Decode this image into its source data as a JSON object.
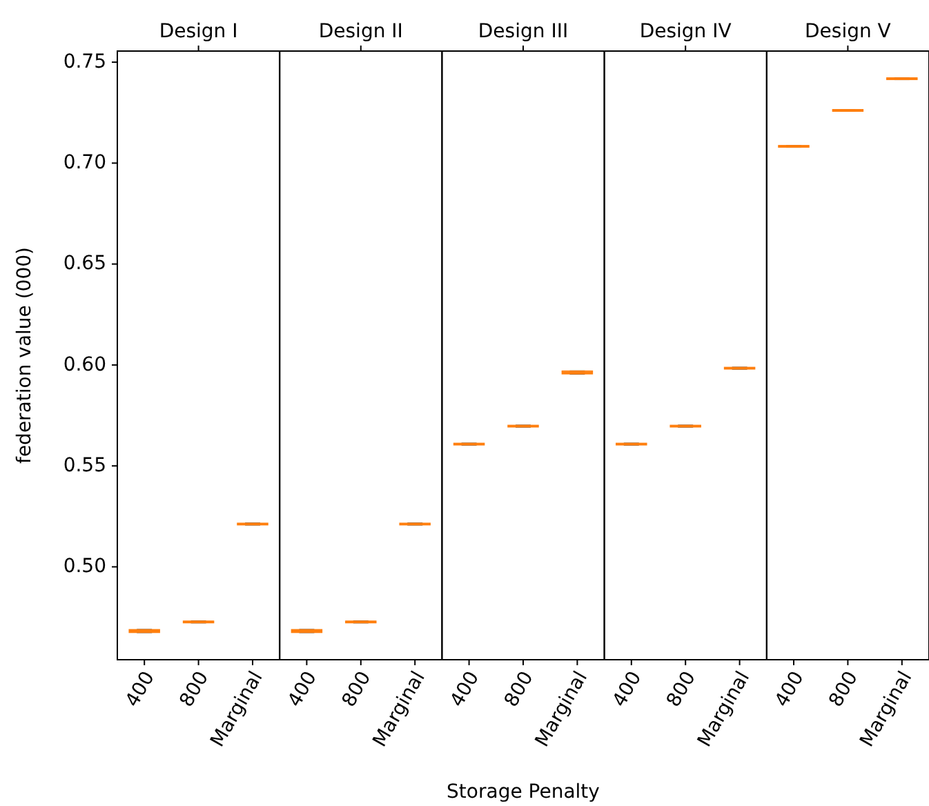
{
  "chart_data": [
    {
      "type": "box",
      "title": "Design I",
      "ylabel": "federation value (000)",
      "categories": [
        "400",
        "800",
        "Marginal"
      ],
      "color": "#ff7f0e",
      "ylim": [
        0.454,
        0.7555
      ],
      "yticks": [
        {
          "value": 0.5,
          "label": "0.50"
        },
        {
          "value": 0.55,
          "label": "0.55"
        },
        {
          "value": 0.6,
          "label": "0.60"
        },
        {
          "value": 0.65,
          "label": "0.65"
        },
        {
          "value": 0.7,
          "label": "0.70"
        },
        {
          "value": 0.75,
          "label": "0.75"
        }
      ],
      "boxes": [
        {
          "low": 0.4675,
          "q1": 0.4675,
          "median": 0.4682,
          "q3": 0.4689,
          "high": 0.4689
        },
        {
          "low": 0.4723,
          "q1": 0.4723,
          "median": 0.4727,
          "q3": 0.4731,
          "high": 0.4731
        },
        {
          "low": 0.5208,
          "q1": 0.5208,
          "median": 0.5212,
          "q3": 0.5216,
          "high": 0.5216
        }
      ]
    },
    {
      "type": "box",
      "title": "Design II",
      "categories": [
        "400",
        "800",
        "Marginal"
      ],
      "color": "#ff7f0e",
      "ylim": [
        0.454,
        0.7555
      ],
      "tick_labels": "x",
      "boxes": [
        {
          "low": 0.4675,
          "q1": 0.4675,
          "median": 0.4682,
          "q3": 0.4689,
          "high": 0.4689
        },
        {
          "low": 0.4723,
          "q1": 0.4723,
          "median": 0.4727,
          "q3": 0.4731,
          "high": 0.4731
        },
        {
          "low": 0.5208,
          "q1": 0.5208,
          "median": 0.5212,
          "q3": 0.5216,
          "high": 0.5216
        }
      ]
    },
    {
      "type": "box",
      "title": "Design III",
      "xlabel": "Storage Penalty",
      "categories": [
        "400",
        "800",
        "Marginal"
      ],
      "color": "#ff7f0e",
      "ylim": [
        0.454,
        0.7555
      ],
      "tick_labels": "x",
      "boxes": [
        {
          "low": 0.5604,
          "q1": 0.5604,
          "median": 0.5608,
          "q3": 0.5612,
          "high": 0.5612
        },
        {
          "low": 0.5693,
          "q1": 0.5693,
          "median": 0.5697,
          "q3": 0.5701,
          "high": 0.5701
        },
        {
          "low": 0.5956,
          "q1": 0.5956,
          "median": 0.5963,
          "q3": 0.597,
          "high": 0.597
        }
      ]
    },
    {
      "type": "box",
      "title": "Design IV",
      "categories": [
        "400",
        "800",
        "Marginal"
      ],
      "color": "#ff7f0e",
      "ylim": [
        0.454,
        0.7555
      ],
      "tick_labels": "x",
      "boxes": [
        {
          "low": 0.5604,
          "q1": 0.5604,
          "median": 0.5608,
          "q3": 0.5612,
          "high": 0.5612
        },
        {
          "low": 0.5693,
          "q1": 0.5693,
          "median": 0.5697,
          "q3": 0.5701,
          "high": 0.5701
        },
        {
          "low": 0.598,
          "q1": 0.598,
          "median": 0.5984,
          "q3": 0.5988,
          "high": 0.5988
        }
      ]
    },
    {
      "type": "box",
      "title": "Design V",
      "categories": [
        "400",
        "800",
        "Marginal"
      ],
      "color": "#ff7f0e",
      "ylim": [
        0.454,
        0.7555
      ],
      "tick_labels": "x",
      "boxes": [
        {
          "low": 0.7079,
          "q1": 0.7079,
          "median": 0.7083,
          "q3": 0.7087,
          "high": 0.7087
        },
        {
          "low": 0.7257,
          "q1": 0.7257,
          "median": 0.7261,
          "q3": 0.7265,
          "high": 0.7265
        },
        {
          "low": 0.7414,
          "q1": 0.7414,
          "median": 0.7418,
          "q3": 0.7422,
          "high": 0.7422
        }
      ]
    }
  ]
}
